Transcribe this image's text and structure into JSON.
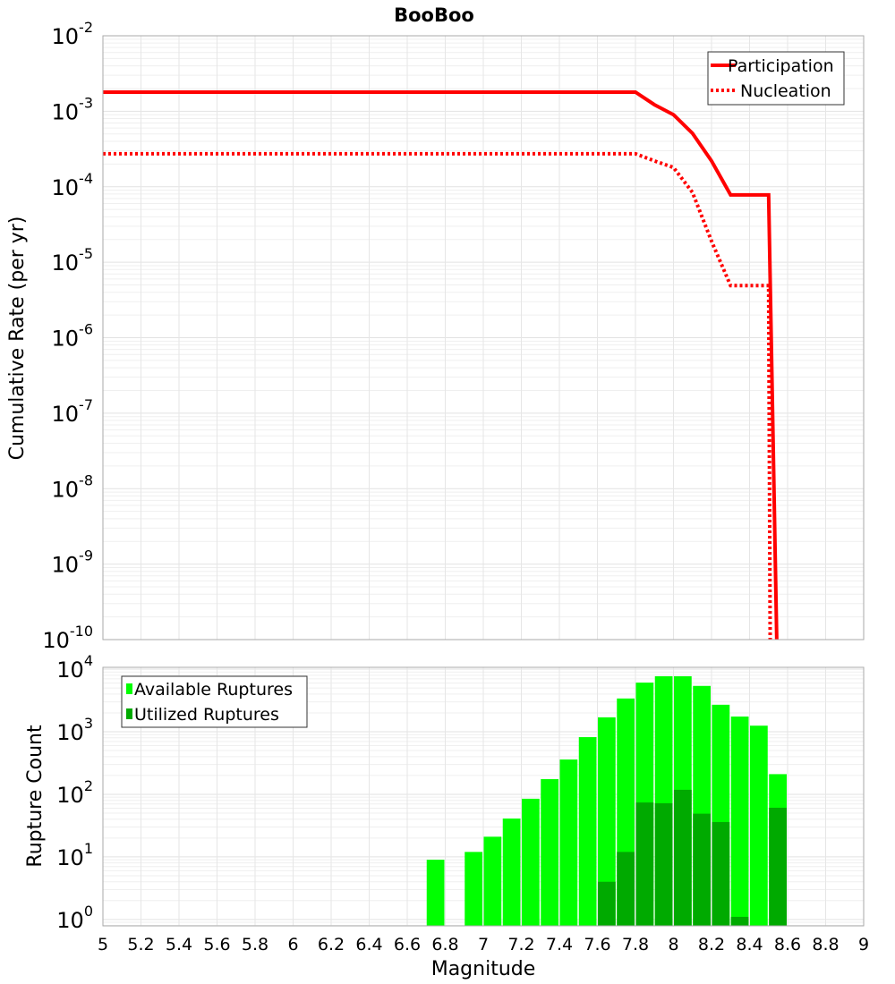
{
  "title": "BooBoo",
  "chart_data": [
    {
      "type": "line",
      "ylabel": "Cumulative Rate (per yr)",
      "yscale": "log",
      "xlim": [
        5,
        9
      ],
      "ylim": [
        1e-10,
        0.01
      ],
      "ytick_exponents": [
        -2,
        -3,
        -4,
        -5,
        -6,
        -7,
        -8,
        -9,
        -10
      ],
      "grid": true,
      "legend_placement": "top-right",
      "series": [
        {
          "name": "Participation",
          "style": "solid",
          "color": "#ff0000",
          "x": [
            5.0,
            7.8,
            7.9,
            8.0,
            8.1,
            8.2,
            8.3,
            8.5,
            8.55
          ],
          "y": [
            0.00179,
            0.00179,
            0.00122,
            0.0009,
            0.00051,
            0.00022,
            7.8e-05,
            7.8e-05,
            1e-11
          ]
        },
        {
          "name": "Nucleation",
          "style": "dotted",
          "color": "#ff0000",
          "x": [
            5.0,
            7.8,
            7.9,
            8.0,
            8.1,
            8.2,
            8.3,
            8.5,
            8.51
          ],
          "y": [
            0.000273,
            0.000273,
            0.00022,
            0.00018,
            8.4e-05,
            1.9e-05,
            4.9e-06,
            4.9e-06,
            1e-11
          ]
        }
      ]
    },
    {
      "type": "bar",
      "xlabel": "Magnitude",
      "ylabel": "Rupture Count",
      "yscale": "log",
      "xlim": [
        5,
        9
      ],
      "ylim": [
        0.79,
        10700
      ],
      "xticks": [
        "5",
        "5.2",
        "5.4",
        "5.6",
        "5.8",
        "6",
        "6.2",
        "6.4",
        "6.6",
        "6.8",
        "7",
        "7.2",
        "7.4",
        "7.6",
        "7.8",
        "8",
        "8.2",
        "8.4",
        "8.6",
        "8.8",
        "9"
      ],
      "ytick_exponents": [
        0,
        1,
        2,
        3,
        4
      ],
      "bin_width": 0.1,
      "grid": true,
      "legend_placement": "top-left",
      "bins": [
        6.75,
        6.95,
        7.05,
        7.15,
        7.25,
        7.35,
        7.45,
        7.55,
        7.65,
        7.75,
        7.85,
        7.95,
        8.05,
        8.15,
        8.25,
        8.35,
        8.45,
        8.55
      ],
      "series": [
        {
          "name": "Available Ruptures",
          "color": "#00ff00",
          "values": [
            9,
            12,
            21,
            41,
            85,
            175,
            360,
            820,
            1700,
            3400,
            6100,
            7700,
            7700,
            5400,
            2700,
            1750,
            1250,
            210
          ]
        },
        {
          "name": "Utilized Ruptures",
          "color": "#00aa00",
          "values": [
            0,
            0,
            0,
            0,
            0,
            0,
            0,
            0,
            4,
            12,
            74,
            72,
            118,
            49,
            36,
            1.1,
            0,
            61
          ]
        }
      ]
    }
  ]
}
